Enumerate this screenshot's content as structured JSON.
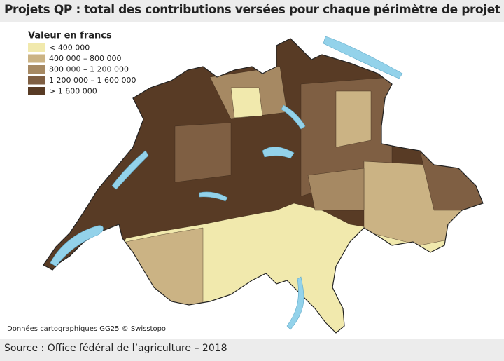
{
  "header": {
    "title": "Projets QP : total des contributions versées pour chaque périmètre de projet"
  },
  "legend": {
    "title": "Valeur en francs",
    "items": [
      {
        "label": "< 400 000",
        "color": "#f1e9ad"
      },
      {
        "label": "400 000 – 800 000",
        "color": "#cbb384"
      },
      {
        "label": "800 000 – 1 200 000",
        "color": "#a68963"
      },
      {
        "label": "1 200 000 – 1 600 000",
        "color": "#7f5f43"
      },
      {
        "label": "> 1 600 000",
        "color": "#583b25"
      }
    ]
  },
  "credit": "Données cartographiques GG25 © Swisstopo",
  "source": "Source : Office fédéral de l’agriculture – 2018"
}
